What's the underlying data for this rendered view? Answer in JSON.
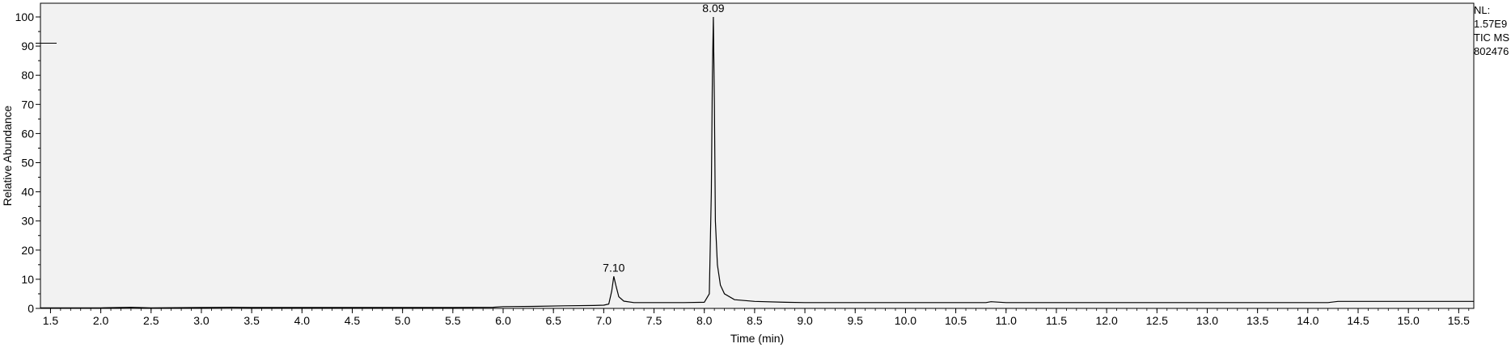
{
  "chart_data": {
    "type": "line",
    "title": "",
    "xlabel": "Time (min)",
    "ylabel": "Relative Abundance",
    "xlim": [
      1.4,
      15.65
    ],
    "ylim": [
      0,
      100
    ],
    "x_ticks": [
      "1.5",
      "2.0",
      "2.5",
      "3.0",
      "3.5",
      "4.0",
      "4.5",
      "5.0",
      "5.5",
      "6.0",
      "6.5",
      "7.0",
      "7.5",
      "8.0",
      "8.5",
      "9.0",
      "9.5",
      "10.0",
      "10.5",
      "11.0",
      "11.5",
      "12.0",
      "12.5",
      "13.0",
      "13.5",
      "14.0",
      "14.5",
      "15.0",
      "15.5"
    ],
    "y_ticks": [
      "0",
      "10",
      "20",
      "30",
      "40",
      "50",
      "60",
      "70",
      "80",
      "90",
      "100"
    ],
    "grid": false,
    "series": [
      {
        "x": [
          1.4,
          1.6,
          2.0,
          2.2,
          2.3,
          2.5,
          3.0,
          3.3,
          3.5,
          3.8,
          4.0,
          4.5,
          5.0,
          5.5,
          5.9,
          6.0,
          6.3,
          6.6,
          6.9,
          7.0,
          7.05,
          7.08,
          7.1,
          7.12,
          7.15,
          7.2,
          7.3,
          7.5,
          7.8,
          8.0,
          8.05,
          8.07,
          8.08,
          8.09,
          8.1,
          8.11,
          8.13,
          8.16,
          8.2,
          8.3,
          8.5,
          8.8,
          9.0,
          10.0,
          10.8,
          10.85,
          11.0,
          12.0,
          13.0,
          14.2,
          14.3,
          15.0,
          15.65
        ],
        "y": [
          0.2,
          0.2,
          0.2,
          0.3,
          0.4,
          0.2,
          0.3,
          0.4,
          0.3,
          0.3,
          0.3,
          0.3,
          0.3,
          0.3,
          0.4,
          0.6,
          0.7,
          0.9,
          1.0,
          1.1,
          1.5,
          6.0,
          11.0,
          8.0,
          4.0,
          2.5,
          2.0,
          2.0,
          2.0,
          2.1,
          5.0,
          40.0,
          80.0,
          100.0,
          70.0,
          30.0,
          15.0,
          8.0,
          5.0,
          3.0,
          2.4,
          2.1,
          2.0,
          2.0,
          2.0,
          2.3,
          2.0,
          2.0,
          2.0,
          2.0,
          2.4,
          2.4,
          2.4
        ]
      }
    ],
    "peak_labels": [
      {
        "x": 7.1,
        "y": 11.0,
        "label": "7.10"
      },
      {
        "x": 8.09,
        "y": 100.0,
        "label": "8.09"
      }
    ]
  },
  "info_box": {
    "line1": "NL:",
    "line2": "1.57E9",
    "line3": "TIC MS",
    "line4": "802476"
  }
}
